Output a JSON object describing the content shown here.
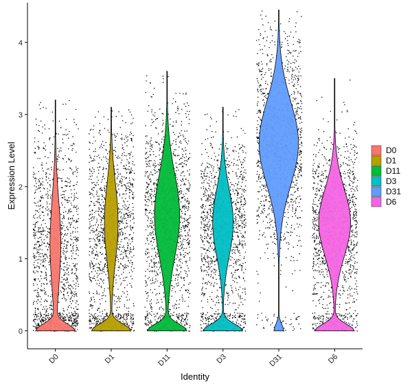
{
  "chart_data": {
    "type": "violin",
    "title": "",
    "xlabel": "Identity",
    "ylabel": "Expression Level",
    "ylim": [
      -0.25,
      4.55
    ],
    "y_ticks": [
      0,
      1,
      2,
      3,
      4
    ],
    "grid": false,
    "legend_position": "right",
    "categories": [
      "D0",
      "D1",
      "D11",
      "D3",
      "D31",
      "D6"
    ],
    "series": [
      {
        "name": "D0",
        "color": "#F8766D",
        "max": 3.2,
        "zero_fraction": 0.55,
        "mode": 1.2,
        "spread": 0.8
      },
      {
        "name": "D1",
        "color": "#B79F00",
        "max": 3.1,
        "zero_fraction": 0.5,
        "mode": 1.5,
        "spread": 0.7
      },
      {
        "name": "D11",
        "color": "#00BA38",
        "max": 3.6,
        "zero_fraction": 0.35,
        "mode": 1.6,
        "spread": 0.75
      },
      {
        "name": "D3",
        "color": "#00BFC4",
        "max": 3.1,
        "zero_fraction": 0.4,
        "mode": 1.5,
        "spread": 0.6
      },
      {
        "name": "D31",
        "color": "#619CFF",
        "max": 4.45,
        "zero_fraction": 0.08,
        "mode": 2.6,
        "spread": 0.75
      },
      {
        "name": "D6",
        "color": "#F564E3",
        "max": 3.5,
        "zero_fraction": 0.3,
        "mode": 1.5,
        "spread": 0.6
      }
    ]
  }
}
